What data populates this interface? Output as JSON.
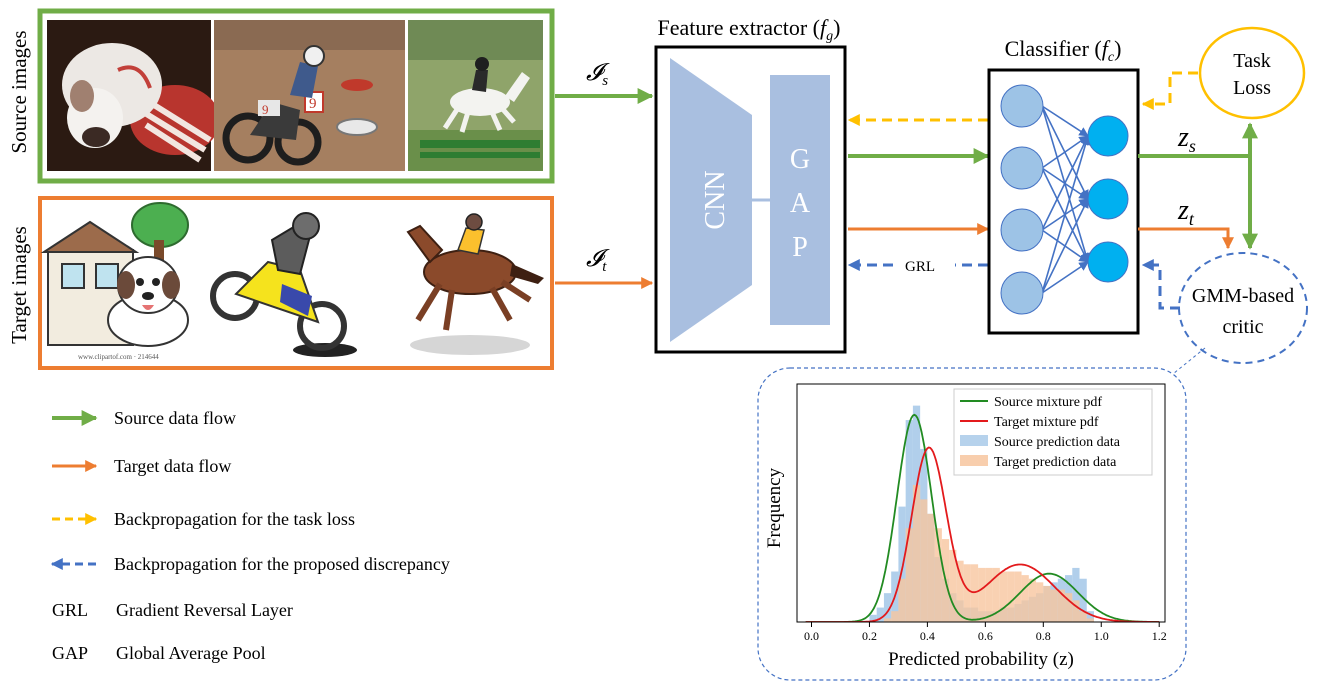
{
  "source_group": {
    "label": "Source images",
    "photos": [
      "dog-photo",
      "motorbike-photo",
      "horse-photo"
    ],
    "flow_label": "𝓘",
    "flow_sub": "s"
  },
  "target_group": {
    "label": "Target images",
    "clipart": [
      "dog-clipart",
      "motorbike-clipart",
      "horse-clipart"
    ],
    "flow_label": "𝓘",
    "flow_sub": "t",
    "watermark": "www.clipartof.com · 214644"
  },
  "feature_extractor": {
    "title": "Feature extractor (",
    "symbol": "f",
    "sub": "g",
    "close": ")",
    "cnn_label": "CNN",
    "gap_letters": [
      "G",
      "A",
      "P"
    ]
  },
  "classifier": {
    "title": "Classifier (",
    "symbol": "f",
    "sub": "c",
    "close": ")"
  },
  "grl_label": "GRL",
  "task_loss": {
    "line1": "Task",
    "line2": "Loss"
  },
  "gmm_critic": {
    "line1": "GMM-based",
    "line2": "critic"
  },
  "outputs": {
    "zs": {
      "base": "z",
      "sub": "s"
    },
    "zt": {
      "base": "z",
      "sub": "t"
    }
  },
  "colors": {
    "source": "#70ad47",
    "target": "#ed7d31",
    "task_backprop": "#ffc000",
    "discrepancy_backprop": "#4472c4",
    "extractor_fill": "#a9bfe0",
    "neuron_light": "#9dc3e6",
    "neuron_bright": "#00b0f0"
  },
  "legend": [
    {
      "kind": "arrow",
      "color": "source",
      "label": "Source data flow"
    },
    {
      "kind": "arrow",
      "color": "target",
      "label": "Target data flow"
    },
    {
      "kind": "dashed",
      "color": "task_backprop",
      "label": "Backpropagation for the task loss"
    },
    {
      "kind": "dashed",
      "color": "discrepancy_backprop",
      "label": "Backpropagation for the proposed discrepancy"
    },
    {
      "kind": "abbr",
      "abbr": "GRL",
      "label": "Gradient Reversal Layer"
    },
    {
      "kind": "abbr",
      "abbr": "GAP",
      "label": "Global Average Pool"
    }
  ],
  "chart_data": {
    "type": "histogram",
    "xlabel": "Predicted probability (z)",
    "ylabel": "Frequency",
    "xlim": [
      -0.05,
      1.22
    ],
    "xticks": [
      "0.0",
      "0.2",
      "0.4",
      "0.6",
      "0.8",
      "1.0",
      "1.2"
    ],
    "xtick_values": [
      0.0,
      0.2,
      0.4,
      0.6,
      0.8,
      1.0,
      1.2
    ],
    "legend_position": "top-right",
    "legend": [
      {
        "name": "Source mixture pdf",
        "kind": "line",
        "color": "#228b22"
      },
      {
        "name": "Target mixture pdf",
        "kind": "line",
        "color": "#e31a1c"
      },
      {
        "name": "Source prediction data",
        "kind": "patch",
        "color": "#9dc3e6"
      },
      {
        "name": "Target prediction data",
        "kind": "patch",
        "color": "#f7c59f"
      }
    ],
    "bin_width": 0.025,
    "source_bins": {
      "x": [
        0.2,
        0.225,
        0.25,
        0.275,
        0.3,
        0.325,
        0.35,
        0.375,
        0.4,
        0.425,
        0.45,
        0.475,
        0.5,
        0.525,
        0.55,
        0.575,
        0.6,
        0.625,
        0.65,
        0.675,
        0.7,
        0.725,
        0.75,
        0.775,
        0.8,
        0.825,
        0.85,
        0.875,
        0.9,
        0.925,
        0.95
      ],
      "y": [
        2,
        4,
        8,
        14,
        32,
        56,
        60,
        48,
        30,
        18,
        12,
        8,
        6,
        4,
        4,
        3,
        3,
        3,
        4,
        4,
        5,
        6,
        7,
        8,
        10,
        11,
        12,
        13,
        15,
        12,
        3
      ]
    },
    "target_bins": {
      "x": [
        0.25,
        0.275,
        0.3,
        0.325,
        0.35,
        0.375,
        0.4,
        0.425,
        0.45,
        0.475,
        0.5,
        0.525,
        0.55,
        0.575,
        0.6,
        0.625,
        0.65,
        0.675,
        0.7,
        0.725,
        0.75,
        0.775,
        0.8,
        0.825,
        0.85,
        0.875,
        0.9,
        0.925,
        0.95
      ],
      "y": [
        1,
        3,
        12,
        26,
        38,
        34,
        30,
        26,
        23,
        20,
        17,
        16,
        16,
        15,
        15,
        15,
        14,
        14,
        14,
        13,
        12,
        11,
        10,
        9,
        9,
        8,
        6,
        3,
        1
      ]
    },
    "source_pdf": {
      "components": [
        {
          "weight": 0.72,
          "mean": 0.355,
          "sd": 0.06
        },
        {
          "weight": 0.28,
          "mean": 0.82,
          "sd": 0.1
        }
      ]
    },
    "target_pdf": {
      "components": [
        {
          "weight": 0.6,
          "mean": 0.405,
          "sd": 0.06
        },
        {
          "weight": 0.4,
          "mean": 0.72,
          "sd": 0.12
        }
      ]
    }
  }
}
